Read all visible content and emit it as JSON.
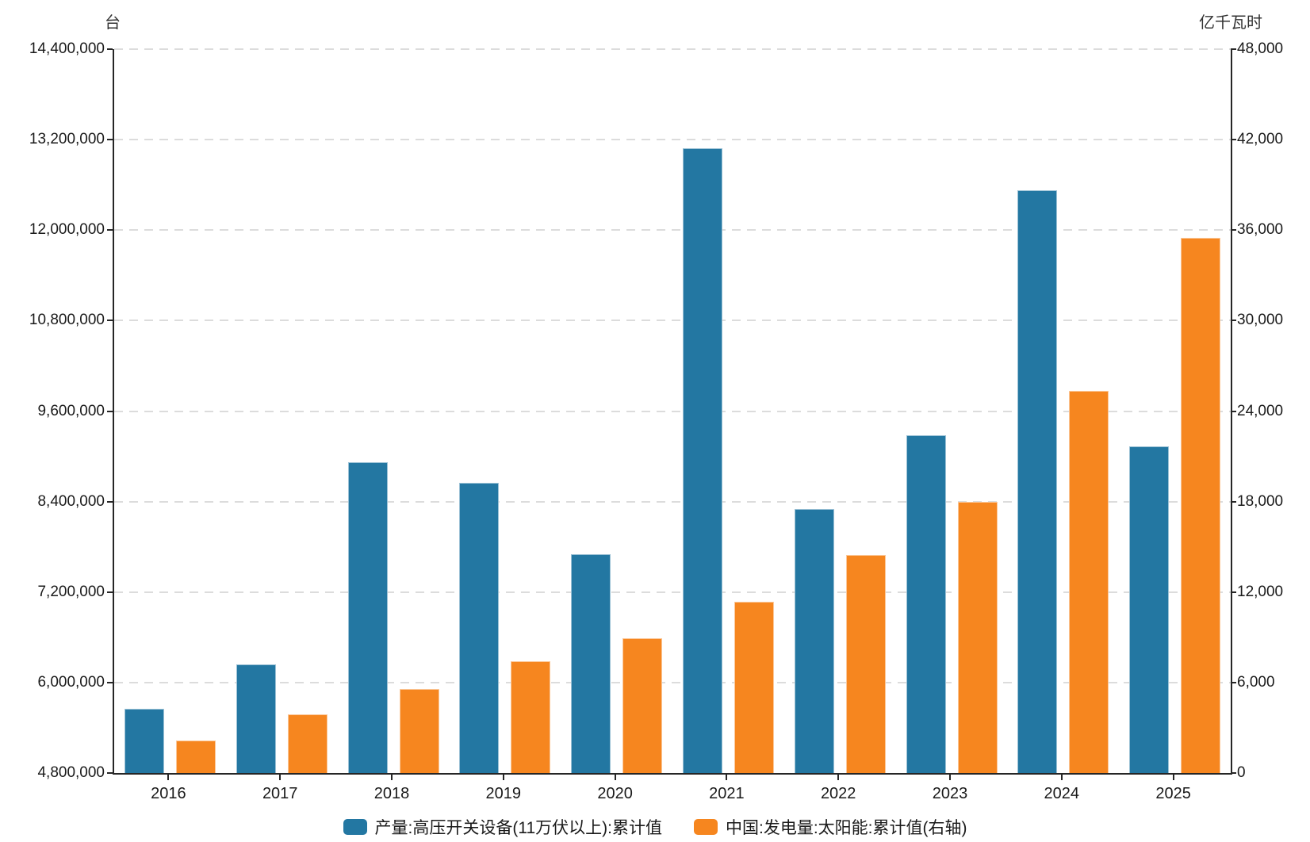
{
  "chart_data": {
    "type": "bar",
    "title": "",
    "categories": [
      "2016",
      "2017",
      "2018",
      "2019",
      "2020",
      "2021",
      "2022",
      "2023",
      "2024",
      "2025"
    ],
    "series": [
      {
        "name": "产量:高压开关设备(11万伏以上):累计值",
        "axis": "left",
        "color": "#2377A2",
        "values": [
          5650000,
          6240000,
          8920000,
          8650000,
          7700000,
          13090000,
          8300000,
          9280000,
          12530000,
          9130000
        ]
      },
      {
        "name": "中国:发电量:太阳能:累计值(右轴)",
        "axis": "right",
        "color": "#F6861F",
        "values": [
          2150,
          3890,
          5570,
          7410,
          8950,
          11330,
          14450,
          18000,
          25360,
          35500
        ]
      }
    ],
    "left_axis": {
      "title": "台",
      "min": 4800000,
      "max": 14400000,
      "step": 1200000,
      "tick_labels": [
        "14,400,000",
        "13,200,000",
        "12,000,000",
        "10,800,000",
        "9,600,000",
        "8,400,000",
        "7,200,000",
        "6,000,000",
        "4,800,000"
      ]
    },
    "right_axis": {
      "title": "亿千瓦时",
      "min": 0,
      "max": 48000,
      "step": 6000,
      "tick_labels": [
        "48,000",
        "42,000",
        "36,000",
        "30,000",
        "24,000",
        "18,000",
        "12,000",
        "6,000",
        "0"
      ]
    },
    "grid": true,
    "gridline_style": "dashed",
    "legend_position": "bottom"
  }
}
